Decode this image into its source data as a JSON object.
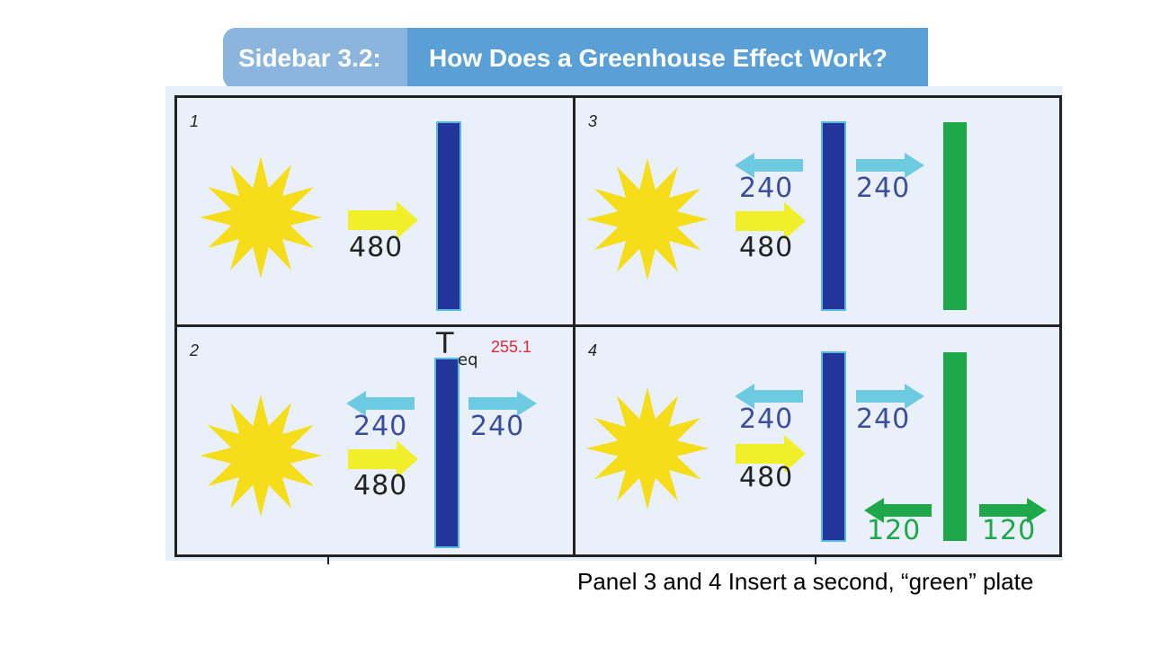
{
  "header": {
    "sidebar_label": "Sidebar 3.2:",
    "title": "How Does a Greenhouse Effect Work?"
  },
  "colors": {
    "header_left": "#8bb5dd",
    "header_right": "#5a9fd6",
    "sun": "#f5dd1a",
    "incoming_arrow": "#f0ef2a",
    "infrared_arrow": "#6ccbe0",
    "blue_plate": "#23359a",
    "green_plate": "#1fa84a",
    "temperature_value": "#e0293a"
  },
  "panels": [
    {
      "number": "1",
      "incoming": "480"
    },
    {
      "number": "2",
      "incoming": "480",
      "up_left": "240",
      "up_right": "240",
      "teq_symbol": "T",
      "teq_subscript": "eq",
      "teq_value": "255.1"
    },
    {
      "number": "3",
      "incoming": "480",
      "up_left": "240",
      "up_right": "240"
    },
    {
      "number": "4",
      "incoming": "480",
      "up_left": "240",
      "up_right": "240",
      "green_left": "120",
      "green_right": "120"
    }
  ],
  "caption": "Panel 3 and 4  Insert a second, “green” plate"
}
